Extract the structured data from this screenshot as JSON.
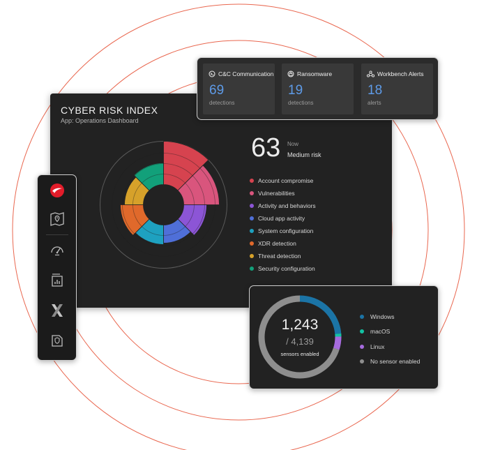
{
  "colors": {
    "ring": "#e9664e",
    "panel": "#222222",
    "accent_blue": "#5e9be8",
    "brand_red": "#e21c2a"
  },
  "stats": [
    {
      "label": "C&C Communication",
      "value": "69",
      "unit": "detections",
      "icon": "cc-communication-icon"
    },
    {
      "label": "Ransomware",
      "value": "19",
      "unit": "detections",
      "icon": "ransomware-icon"
    },
    {
      "label": "Workbench Alerts",
      "value": "18",
      "unit": "alerts",
      "icon": "workbench-alerts-icon"
    }
  ],
  "risk": {
    "title": "CYBER RISK INDEX",
    "subtitle": "App: Operations Dashboard",
    "score": "63",
    "now_label": "Now",
    "level": "Medium risk",
    "categories": [
      {
        "label": "Account compromise",
        "color": "#d6434f"
      },
      {
        "label": "Vulnerabilities",
        "color": "#d9557d"
      },
      {
        "label": "Activity and behaviors",
        "color": "#8c55d6"
      },
      {
        "label": "Cloud app activity",
        "color": "#4f6fd8"
      },
      {
        "label": "System configuration",
        "color": "#1ea1c0"
      },
      {
        "label": "XDR detection",
        "color": "#e0692b"
      },
      {
        "label": "Threat detection",
        "color": "#d6a12a"
      },
      {
        "label": "Security configuration",
        "color": "#12a07a"
      }
    ]
  },
  "sensors": {
    "enabled": "1,243",
    "total": "/ 4,139",
    "label": "sensors enabled",
    "legend": [
      {
        "label": "Windows",
        "color": "#1b74a6",
        "share": 0.236
      },
      {
        "label": "macOS",
        "color": "#13c2a3",
        "share": 0.012
      },
      {
        "label": "Linux",
        "color": "#a66bde",
        "share": 0.052
      },
      {
        "label": "No sensor enabled",
        "color": "#8e8e8e",
        "share": 0.7
      }
    ]
  },
  "sidebar": {
    "items": [
      {
        "name": "trend-micro-logo-icon"
      },
      {
        "name": "map-location-icon"
      },
      {
        "name": "speedometer-icon"
      },
      {
        "name": "report-chart-icon"
      },
      {
        "name": "xdr-icon"
      },
      {
        "name": "security-playbook-icon"
      }
    ]
  }
}
